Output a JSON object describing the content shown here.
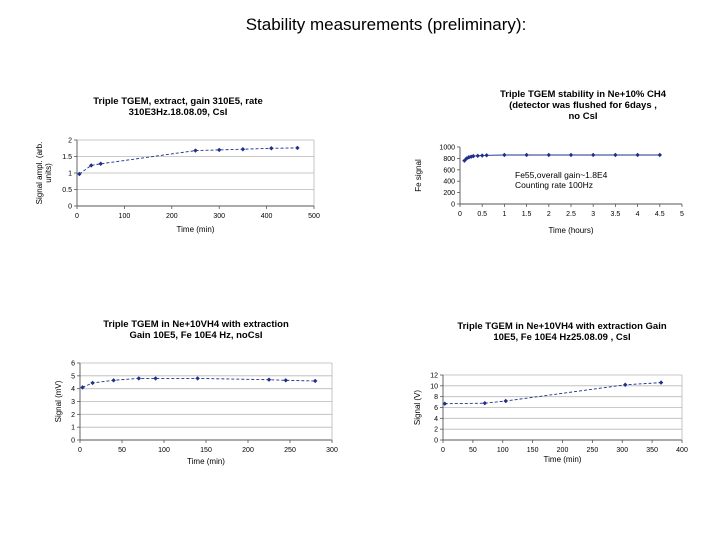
{
  "page": {
    "title": "Stability measurements (preliminary):"
  },
  "colors": {
    "series": "#1f2f8a",
    "grid": "#b8b8b8",
    "axis": "#555555"
  },
  "chart_data": [
    {
      "type": "line",
      "title_lines": [
        "Triple TGEM, extract, gain 310E5, rate",
        "310E3Hz.18.08.09, CsI"
      ],
      "xlabel": "Time (min)",
      "ylabel_lines": [
        "Signal ampl. (arb.",
        "units)"
      ],
      "xlim": [
        0,
        500
      ],
      "ylim": [
        0,
        2
      ],
      "xticks": [
        "0",
        "100",
        "200",
        "300",
        "400",
        "500"
      ],
      "yticks": [
        "0",
        "0.5",
        "1",
        "1.5",
        "2"
      ],
      "grid": "horizontal",
      "series": [
        {
          "x": [
            5,
            30,
            50,
            250,
            300,
            350,
            410,
            465
          ],
          "y": [
            0.97,
            1.23,
            1.28,
            1.68,
            1.7,
            1.72,
            1.75,
            1.76
          ]
        }
      ]
    },
    {
      "type": "line",
      "title_lines": [
        "Triple TGEM stability in Ne+10% CH4",
        "(detector was flushed for 6days ,",
        "no CsI"
      ],
      "xlabel": "Time (hours)",
      "ylabel_lines": [
        "Fe signal"
      ],
      "xlim": [
        0,
        5
      ],
      "ylim": [
        0,
        1000
      ],
      "xticks": [
        "0",
        "0.5",
        "1",
        "1.5",
        "2",
        "2.5",
        "3",
        "3.5",
        "4",
        "4.5",
        "5"
      ],
      "yticks": [
        "0",
        "200",
        "400",
        "600",
        "800",
        "1000"
      ],
      "grid": "none",
      "annotations": [
        "Fe55,overall gain~1.8E4",
        "Counting rate 100Hz"
      ],
      "series": [
        {
          "x": [
            0.1,
            0.15,
            0.2,
            0.25,
            0.3,
            0.4,
            0.5,
            0.6,
            1.0,
            1.5,
            2.0,
            2.5,
            3.0,
            3.5,
            4.0,
            4.5
          ],
          "y": [
            760,
            800,
            820,
            830,
            840,
            845,
            850,
            855,
            860,
            860,
            860,
            860,
            860,
            860,
            860,
            860
          ]
        }
      ]
    },
    {
      "type": "line",
      "title_lines": [
        "Triple TGEM in Ne+10VH4 with extraction",
        "Gain 10E5, Fe 10E4 Hz, noCsI"
      ],
      "xlabel": "Time (min)",
      "ylabel_lines": [
        "Signal (mV)"
      ],
      "xlim": [
        0,
        300
      ],
      "ylim": [
        0,
        6
      ],
      "xticks": [
        "0",
        "50",
        "100",
        "150",
        "200",
        "250",
        "300"
      ],
      "yticks": [
        "0",
        "1",
        "2",
        "3",
        "4",
        "5",
        "6"
      ],
      "grid": "horizontal",
      "series": [
        {
          "x": [
            3,
            15,
            40,
            70,
            90,
            140,
            225,
            245,
            280
          ],
          "y": [
            4.1,
            4.45,
            4.65,
            4.8,
            4.8,
            4.8,
            4.7,
            4.65,
            4.6
          ]
        }
      ]
    },
    {
      "type": "line",
      "title_lines": [
        "Triple TGEM in Ne+10VH4 with extraction Gain",
        "10E5, Fe 10E4 Hz25.08.09 , CsI"
      ],
      "xlabel": "Time (min)",
      "ylabel_lines": [
        "Signal (V)"
      ],
      "xlim": [
        0,
        400
      ],
      "ylim": [
        0,
        12
      ],
      "xticks": [
        "0",
        "50",
        "100",
        "150",
        "200",
        "250",
        "300",
        "350",
        "400"
      ],
      "yticks": [
        "0",
        "2",
        "4",
        "6",
        "8",
        "10",
        "12"
      ],
      "grid": "horizontal",
      "series": [
        {
          "x": [
            3,
            70,
            105,
            305,
            365
          ],
          "y": [
            6.7,
            6.8,
            7.2,
            10.2,
            10.6
          ]
        }
      ]
    }
  ]
}
